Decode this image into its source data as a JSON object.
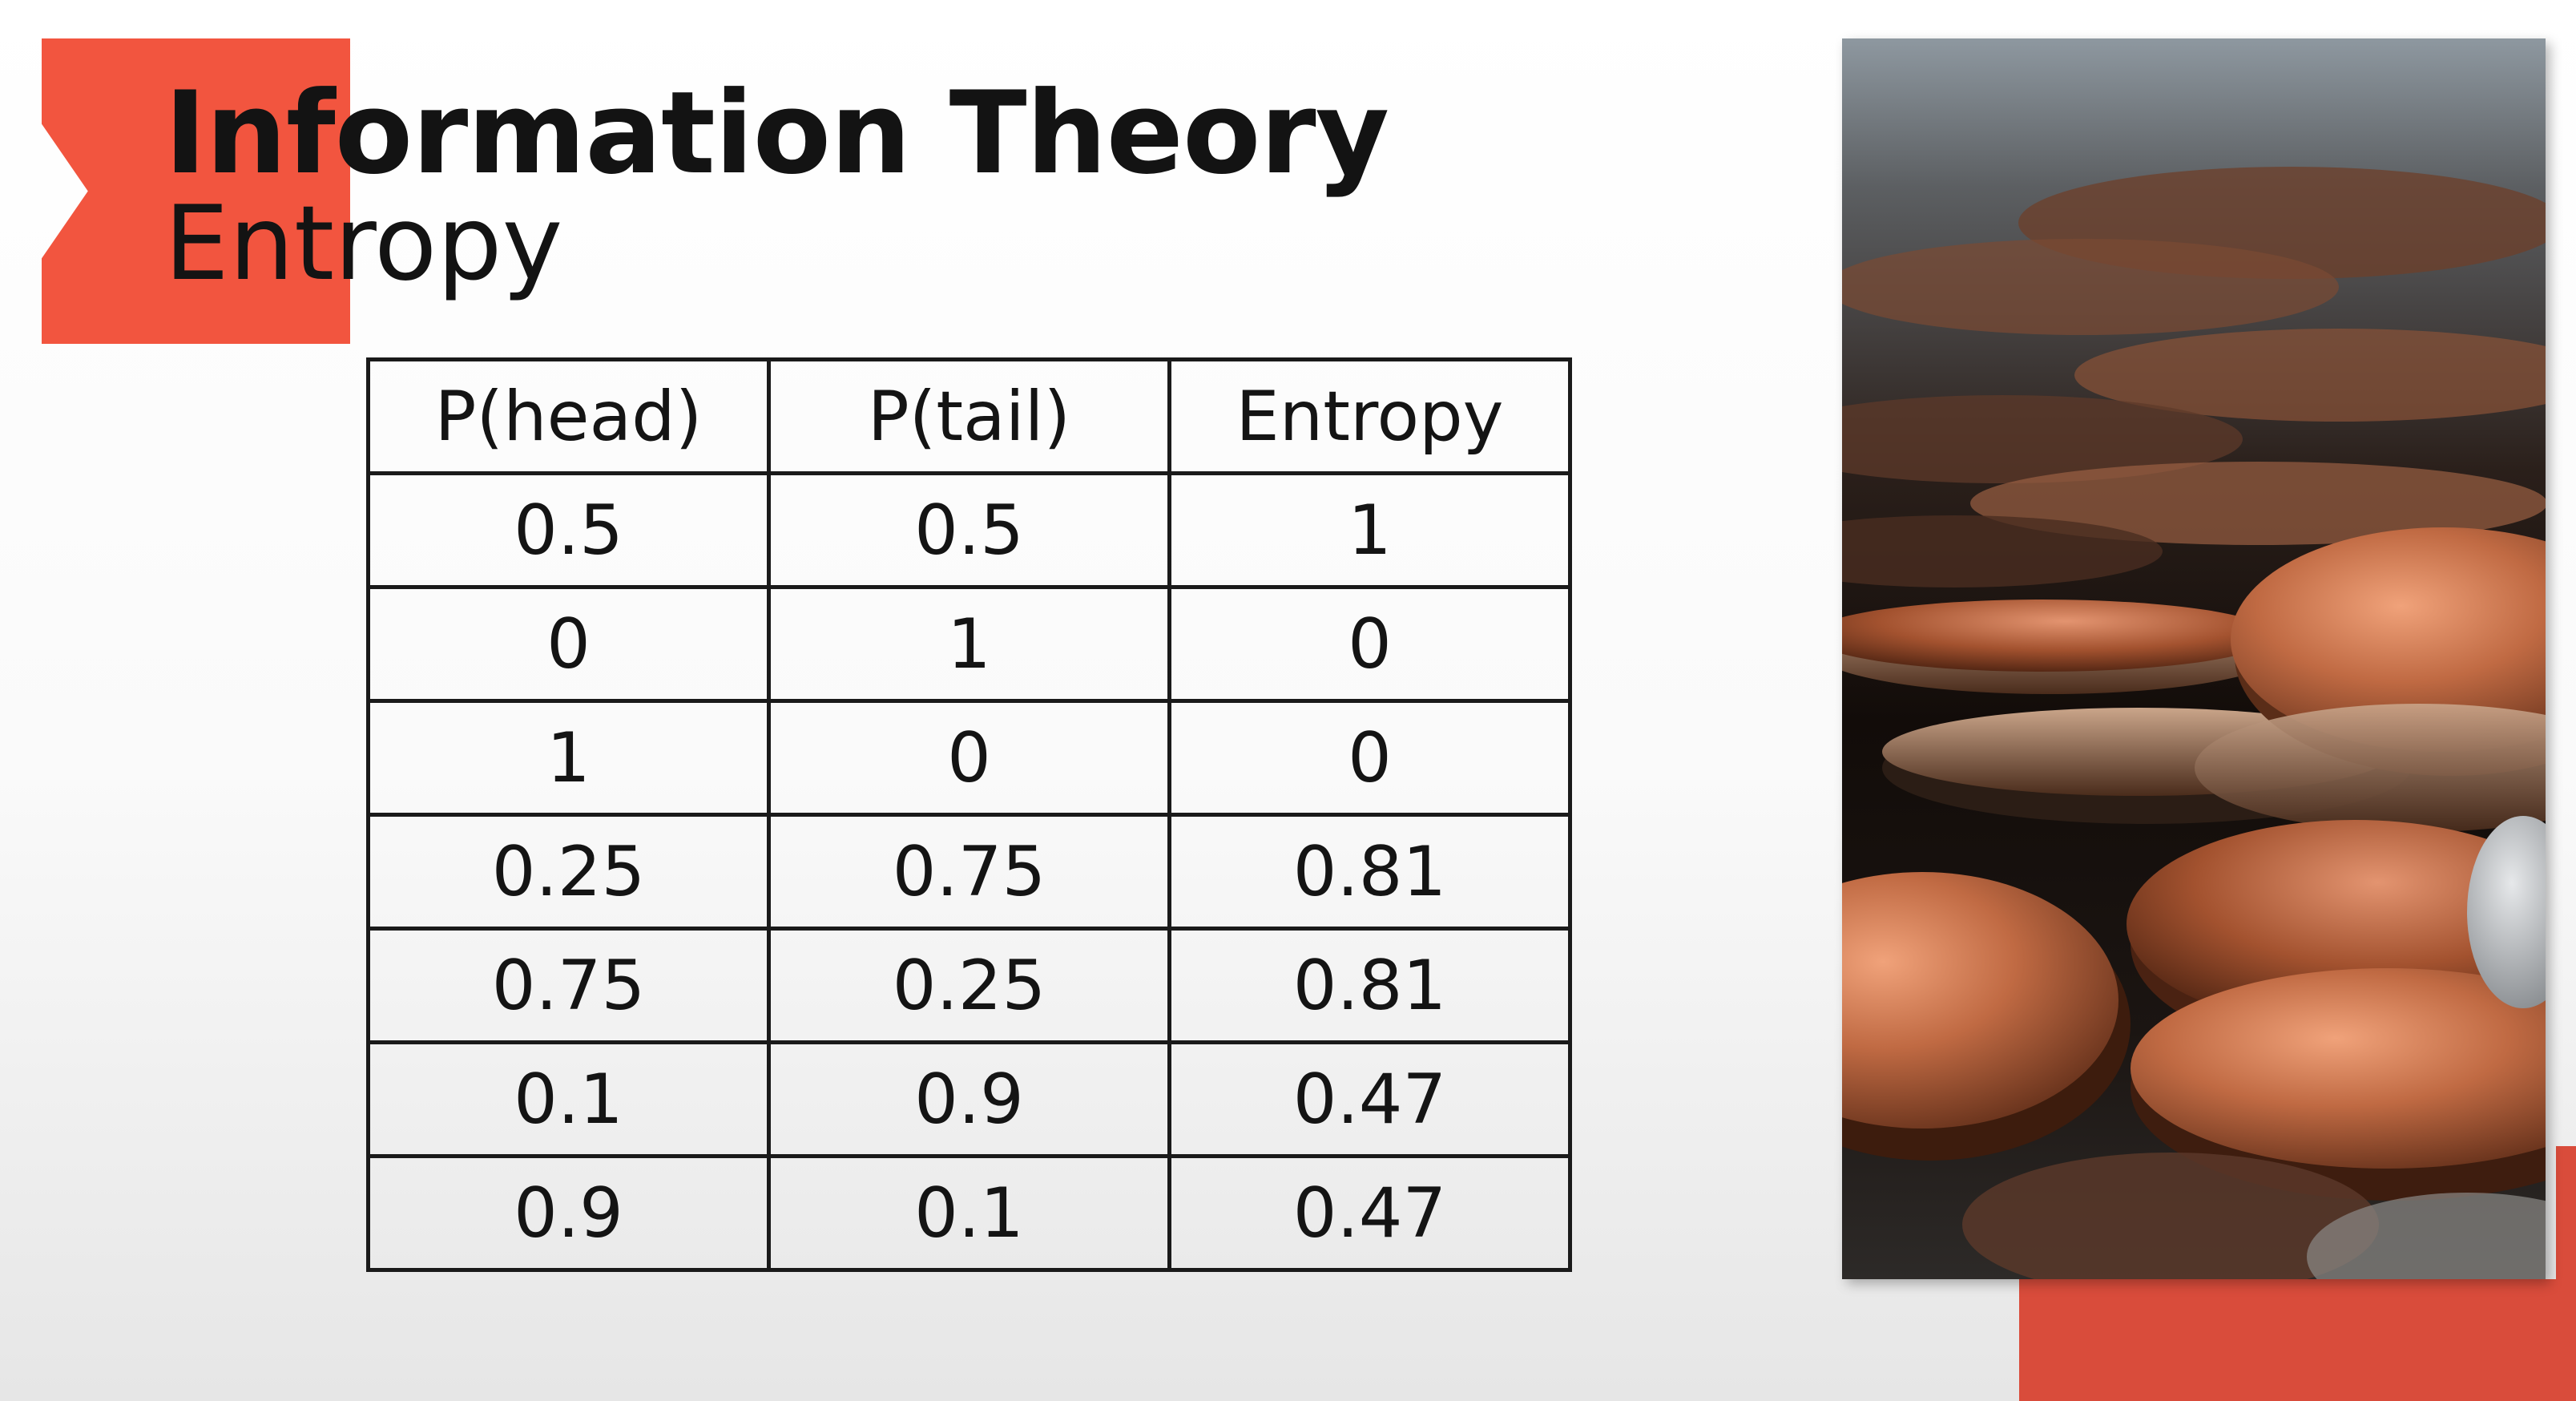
{
  "slide": {
    "title": "Information Theory",
    "subtitle": "Entropy",
    "accent_color": "#f2553f"
  },
  "table": {
    "headers": [
      "P(head)",
      "P(tail)",
      "Entropy"
    ],
    "rows": [
      [
        "0.5",
        "0.5",
        "1"
      ],
      [
        "0",
        "1",
        "0"
      ],
      [
        "1",
        "0",
        "0"
      ],
      [
        "0.25",
        "0.75",
        "0.81"
      ],
      [
        "0.75",
        "0.25",
        "0.81"
      ],
      [
        "0.1",
        "0.9",
        "0.47"
      ],
      [
        "0.9",
        "0.1",
        "0.47"
      ]
    ]
  },
  "photo": {
    "subject": "pile of copper coins"
  }
}
